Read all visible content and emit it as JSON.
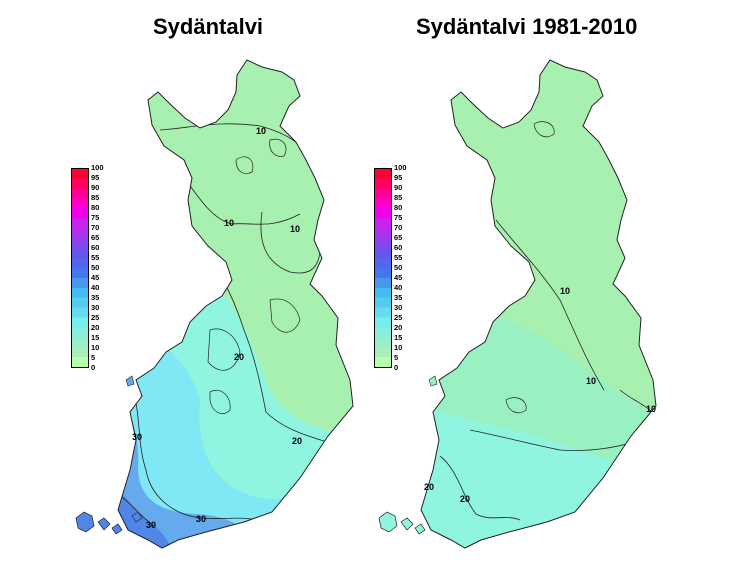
{
  "panels": [
    {
      "title": "Sydäntalvi",
      "contour_labels": [
        "10",
        "10",
        "10",
        "20",
        "20",
        "30",
        "30",
        "30"
      ]
    },
    {
      "title": "Sydäntalvi 1981-2010",
      "contour_labels": [
        "10",
        "10",
        "10",
        "20",
        "20"
      ]
    }
  ],
  "legend": {
    "ticks": [
      "100",
      "95",
      "90",
      "85",
      "80",
      "75",
      "70",
      "65",
      "60",
      "55",
      "50",
      "45",
      "40",
      "35",
      "30",
      "25",
      "20",
      "15",
      "10",
      "5",
      "0"
    ],
    "colors": [
      "#ff0033",
      "#ff0066",
      "#ff0099",
      "#ff00cc",
      "#ee00ee",
      "#cc22ee",
      "#aa33ee",
      "#8844ee",
      "#6655ee",
      "#5566ee",
      "#4477ee",
      "#4499ee",
      "#44bbee",
      "#55ccee",
      "#66ddee",
      "#77eeee",
      "#88eedd",
      "#99eecc",
      "#aaeebb",
      "#bbffaa"
    ]
  },
  "colors": {
    "light_green": "#a8f0b0",
    "mid_green": "#99f0c0",
    "cyan": "#8ff5e0",
    "light_blue": "#80e8f5",
    "blue": "#66aaee",
    "dark_blue": "#4f86e8"
  }
}
